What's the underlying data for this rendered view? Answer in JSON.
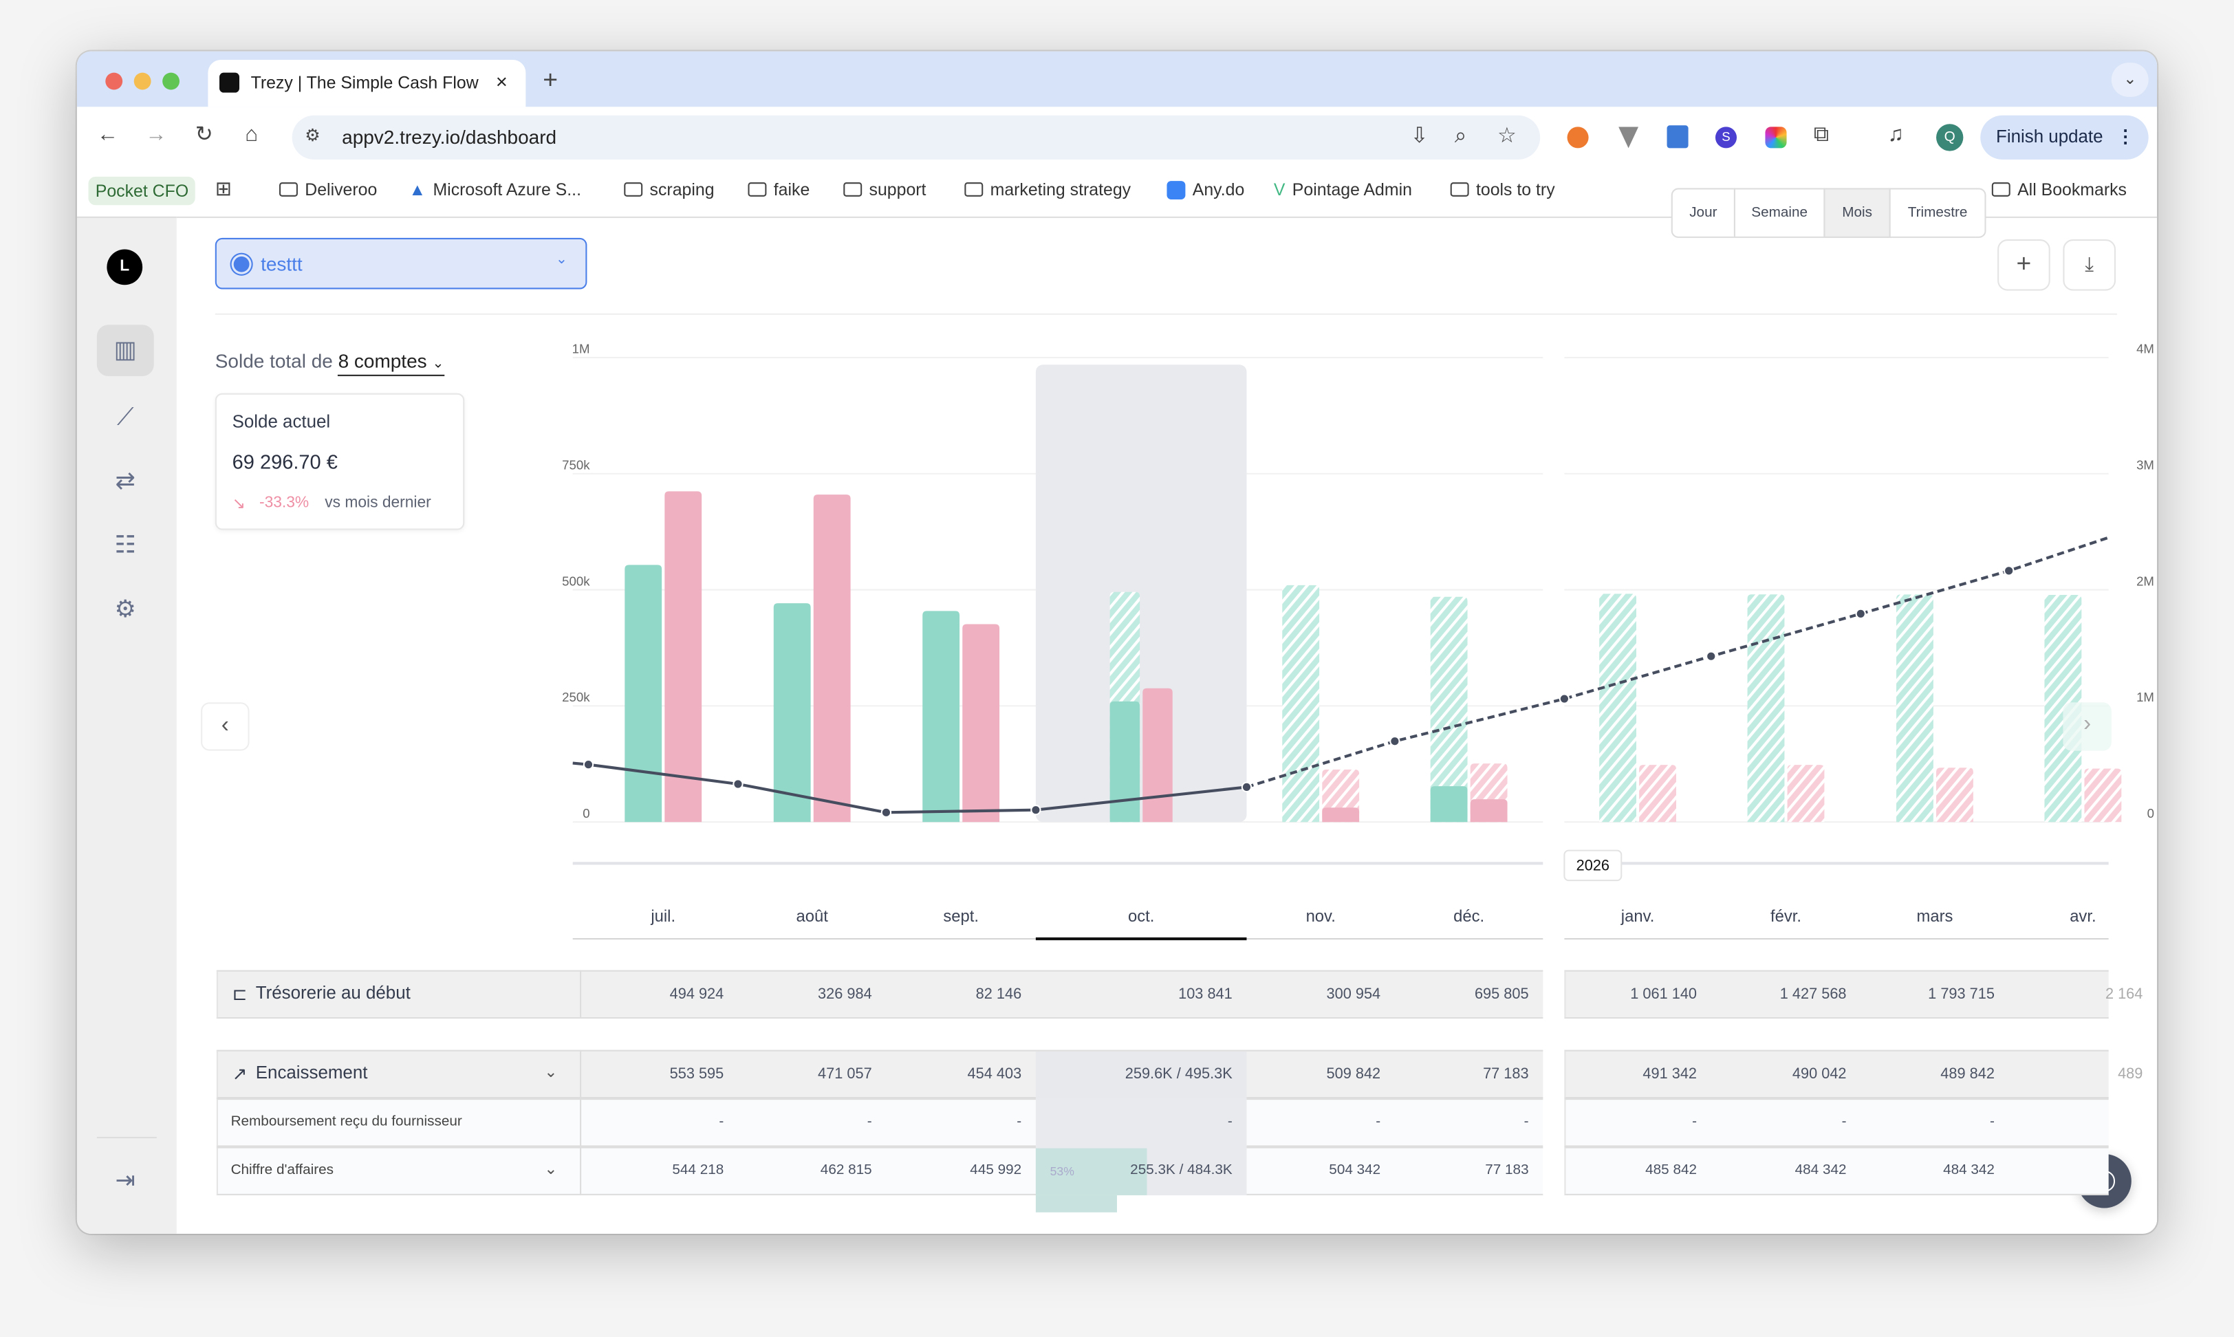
{
  "browser": {
    "tab_title": "Trezy | The Simple Cash Flow",
    "url": "appv2.trezy.io/dashboard",
    "finish_update": "Finish update",
    "profile_initial": "Q",
    "bookmarks": [
      "Pocket CFO",
      "Deliveroo",
      "Microsoft Azure S...",
      "scraping",
      "faike",
      "support",
      "marketing strategy",
      "Any.do",
      "Pointage Admin",
      "tools to try",
      "All Bookmarks"
    ]
  },
  "sidebar": {
    "avatar": "L",
    "items": [
      "dashboard-chart",
      "analytics",
      "transactions",
      "reports",
      "settings"
    ],
    "collapse": "expand"
  },
  "header": {
    "scenario": "testtt",
    "periods": [
      "Jour",
      "Semaine",
      "Mois",
      "Trimestre"
    ],
    "active_period": "Mois"
  },
  "summary": {
    "total_prefix": "Solde total de",
    "accounts": "8 comptes",
    "card_title": "Solde actuel",
    "balance": "69 296.70 €",
    "change": "-33.3%",
    "change_suffix": "vs mois dernier"
  },
  "colors": {
    "income": "#93d8c9",
    "expense": "#f0b1c2",
    "balance_line": "#454d5f",
    "accent": "#4a7ee8"
  },
  "chart_data": {
    "type": "bar",
    "categories": [
      "juil.",
      "août",
      "sept.",
      "oct.",
      "nov.",
      "déc.",
      "janv.",
      "févr.",
      "mars",
      "avr."
    ],
    "year_marker": "2026",
    "current_period": "oct.",
    "left_axis": {
      "ticks": [
        "0",
        "250k",
        "500k",
        "750k",
        "1M"
      ],
      "range": [
        0,
        1000000
      ]
    },
    "right_axis": {
      "ticks": [
        "0",
        "1M",
        "2M",
        "3M",
        "4M"
      ],
      "range": [
        0,
        4000000
      ]
    },
    "series": [
      {
        "key": "encaissement_realise",
        "values": [
          553595,
          471057,
          454403,
          259600,
          0,
          77183,
          0,
          0,
          0,
          0
        ]
      },
      {
        "key": "encaissement_prevu",
        "values": [
          null,
          null,
          null,
          495300,
          509842,
          485000,
          491342,
          490042,
          489842,
          489000
        ]
      },
      {
        "key": "decaissement_realise",
        "values": [
          712000,
          705000,
          426000,
          288000,
          31000,
          49000,
          0,
          0,
          0,
          0
        ]
      },
      {
        "key": "decaissement_prevu",
        "values": [
          null,
          null,
          null,
          null,
          113000,
          126000,
          123000,
          123000,
          117000,
          115000
        ]
      },
      {
        "key": "tresorerie",
        "values": [
          494924,
          326984,
          82146,
          103841,
          300954,
          695805,
          1061140,
          1427568,
          1793715,
          2164000
        ]
      }
    ]
  },
  "table": {
    "rows": [
      {
        "label": "Trésorerie au début",
        "values": [
          "494 924",
          "326 984",
          "82 146",
          "103 841",
          "300 954",
          "695 805",
          "1 061 140",
          "1 427 568",
          "1 793 715",
          "2 164"
        ]
      },
      {
        "label": "Encaissement",
        "values": [
          "553 595",
          "471 057",
          "454 403",
          "259.6K / 495.3K",
          "509 842",
          "77 183",
          "491 342",
          "490 042",
          "489 842",
          "489"
        ]
      },
      {
        "label": "Remboursement reçu du fournisseur",
        "values": [
          "-",
          "-",
          "-",
          "-",
          "-",
          "-",
          "-",
          "-",
          "-",
          ""
        ]
      },
      {
        "label": "Chiffre d'affaires",
        "values": [
          "544 218",
          "462 815",
          "445 992",
          "255.3K / 484.3K",
          "504 342",
          "77 183",
          "485 842",
          "484 342",
          "484 342",
          ""
        ],
        "progress_label": "53%",
        "progress": 0.53
      }
    ]
  }
}
